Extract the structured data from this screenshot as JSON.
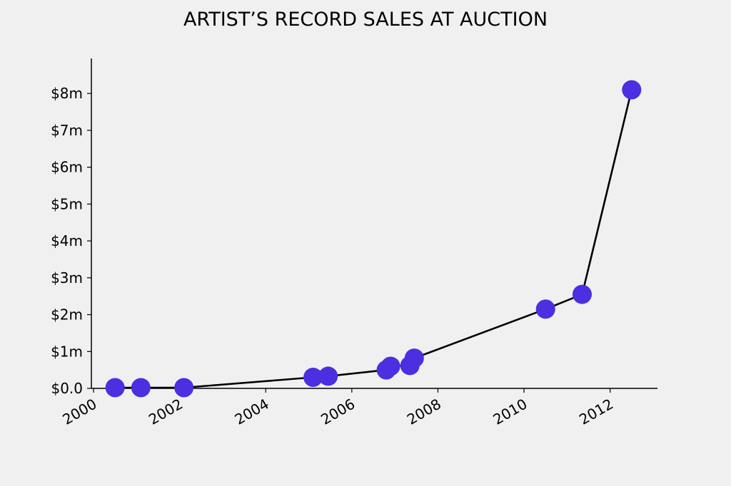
{
  "chart_data": {
    "type": "line",
    "title": "ARTIST’S RECORD SALES AT AUCTION",
    "xlabel": "",
    "ylabel": "",
    "xlim": [
      1999.95,
      2013.1
    ],
    "ylim": [
      0,
      8.95
    ],
    "x_ticks": [
      2000,
      2002,
      2004,
      2006,
      2008,
      2010,
      2012
    ],
    "x_tick_labels": [
      "2000",
      "2002",
      "2004",
      "2006",
      "2008",
      "2010",
      "2012"
    ],
    "y_ticks": [
      0,
      1,
      2,
      3,
      4,
      5,
      6,
      7,
      8
    ],
    "y_tick_labels": [
      "$0.0",
      "$1m",
      "$2m",
      "$3m",
      "$4m",
      "$5m",
      "$6m",
      "$7m",
      "$8m"
    ],
    "grid": false,
    "marker_color": "#4b2fe0",
    "line_color": "#000000",
    "series": [
      {
        "x": [
          2000.5,
          2001.1,
          2002.1,
          2005.1,
          2005.45,
          2006.8,
          2006.9,
          2007.35,
          2007.45,
          2010.5,
          2011.35,
          2012.5
        ],
        "y": [
          0.02,
          0.02,
          0.02,
          0.3,
          0.33,
          0.5,
          0.6,
          0.62,
          0.82,
          2.15,
          2.55,
          8.1
        ]
      }
    ]
  }
}
